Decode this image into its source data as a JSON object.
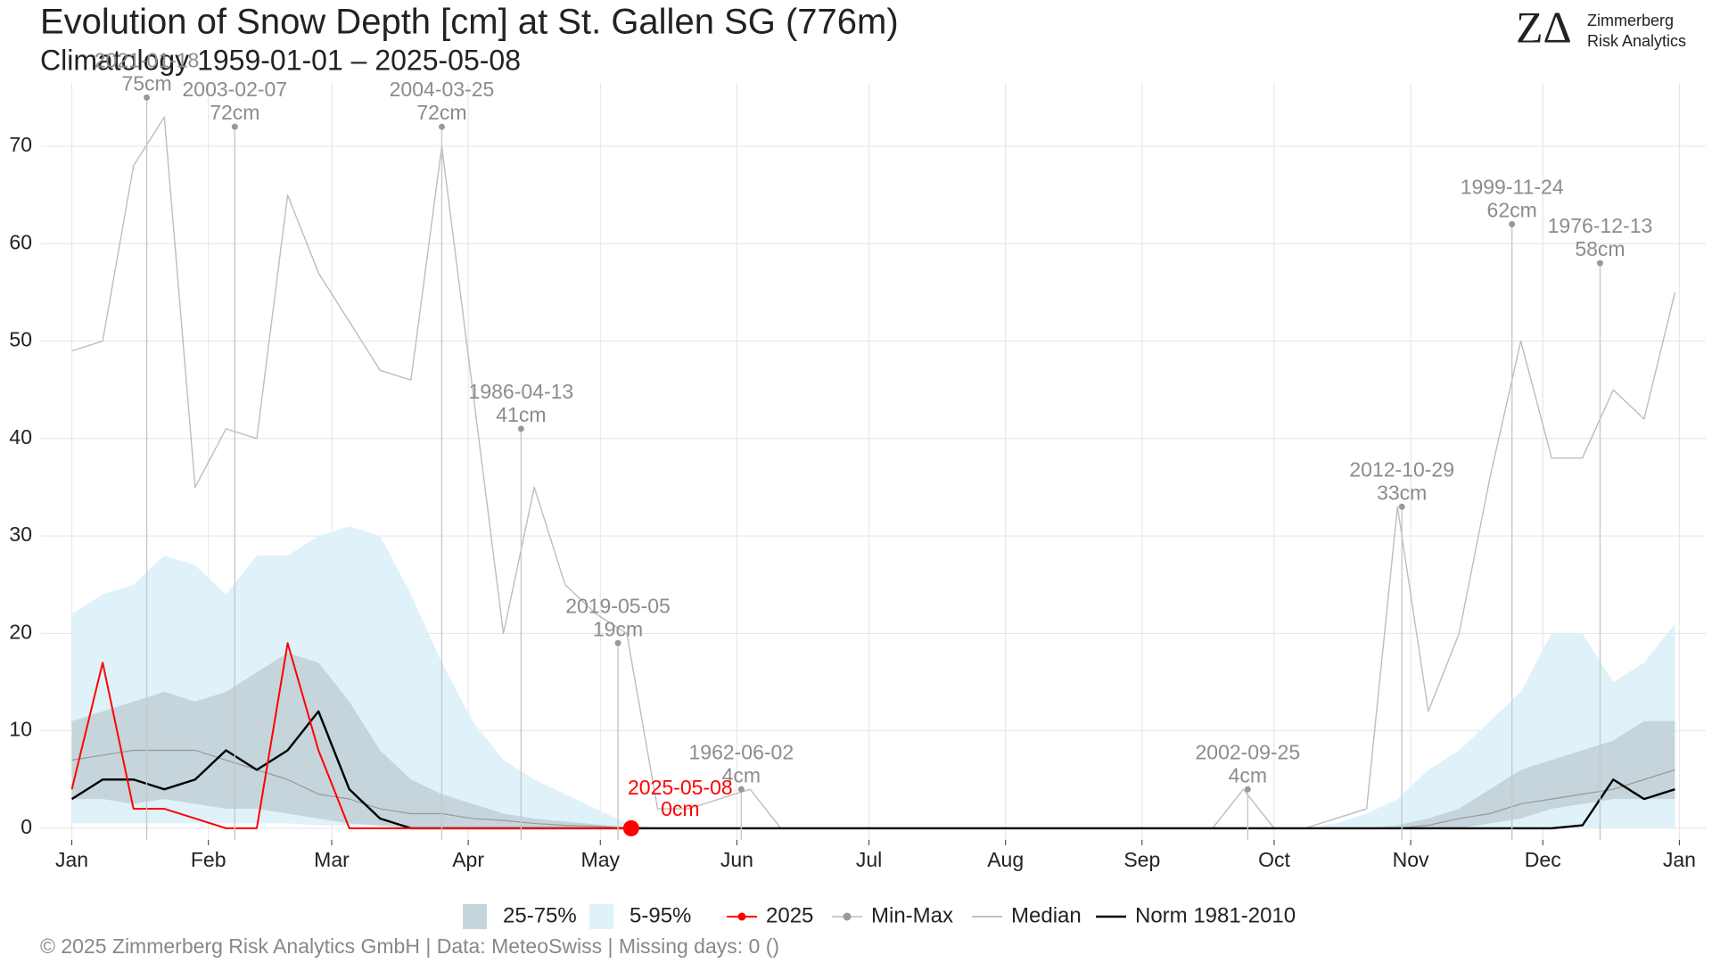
{
  "chart_data": {
    "type": "line",
    "title": "Evolution of Snow Depth [cm] at St. Gallen  SG (776m)",
    "subtitle": "Climatology 1959-01-01 – 2025-05-08",
    "logo": {
      "mark": "ZΔ",
      "line1": "Zimmerberg",
      "line2": "Risk Analytics"
    },
    "footer": "©  2025 Zimmerberg Risk Analytics GmbH | Data: MeteoSwiss | Missing days: 0 ()",
    "xlim": [
      -6,
      372
    ],
    "ylim": [
      -1.2,
      76.5
    ],
    "xticks": [
      {
        "value": 1,
        "label": "Jan"
      },
      {
        "value": 32,
        "label": "Feb"
      },
      {
        "value": 60,
        "label": "Mar"
      },
      {
        "value": 91,
        "label": "Apr"
      },
      {
        "value": 121,
        "label": "May"
      },
      {
        "value": 152,
        "label": "Jun"
      },
      {
        "value": 182,
        "label": "Jul"
      },
      {
        "value": 213,
        "label": "Aug"
      },
      {
        "value": 244,
        "label": "Sep"
      },
      {
        "value": 274,
        "label": "Oct"
      },
      {
        "value": 305,
        "label": "Nov"
      },
      {
        "value": 335,
        "label": "Dec"
      },
      {
        "value": 366,
        "label": "Jan"
      }
    ],
    "yticks": [
      0,
      10,
      20,
      30,
      40,
      50,
      60,
      70
    ],
    "grid": true,
    "x": [
      1,
      8,
      15,
      22,
      29,
      36,
      43,
      50,
      57,
      64,
      71,
      78,
      85,
      92,
      99,
      106,
      113,
      120,
      127,
      134,
      141,
      148,
      155,
      162,
      169,
      176,
      183,
      190,
      197,
      204,
      211,
      218,
      225,
      232,
      239,
      246,
      253,
      260,
      267,
      274,
      281,
      288,
      295,
      302,
      309,
      316,
      323,
      330,
      337,
      344,
      351,
      358,
      365
    ],
    "series": [
      {
        "name": "5-95%",
        "kind": "band",
        "color": "#dff2f9",
        "low": [
          0.5,
          0.5,
          0.5,
          0.5,
          0.5,
          0.5,
          0.5,
          0.5,
          0.3,
          0.3,
          0.2,
          0,
          0,
          0,
          0,
          0,
          0,
          0,
          0,
          0,
          0,
          0,
          0,
          0,
          0,
          0,
          0,
          0,
          0,
          0,
          0,
          0,
          0,
          0,
          0,
          0,
          0,
          0,
          0,
          0,
          0,
          0,
          0,
          0,
          0,
          0,
          0,
          0,
          0,
          0,
          0,
          0,
          0
        ],
        "high": [
          22,
          24,
          25,
          28,
          27,
          24,
          28,
          28,
          30,
          31,
          30,
          24,
          17,
          11,
          7,
          5,
          3.5,
          2,
          0.5,
          0,
          0,
          0,
          0,
          0,
          0,
          0,
          0,
          0,
          0,
          0,
          0,
          0,
          0,
          0,
          0,
          0,
          0,
          0,
          0,
          0,
          0,
          0.5,
          1.5,
          3,
          6,
          8,
          11,
          14,
          20,
          20,
          15,
          17,
          21
        ]
      },
      {
        "name": "25-75%",
        "kind": "band",
        "color": "#c5d5db",
        "low": [
          3,
          3,
          2.5,
          3,
          2.5,
          2,
          2,
          1.5,
          1,
          0.5,
          0.3,
          0,
          0,
          0,
          0,
          0,
          0,
          0,
          0,
          0,
          0,
          0,
          0,
          0,
          0,
          0,
          0,
          0,
          0,
          0,
          0,
          0,
          0,
          0,
          0,
          0,
          0,
          0,
          0,
          0,
          0,
          0,
          0,
          0,
          0,
          0,
          0.5,
          1,
          2,
          2.5,
          3,
          3,
          3
        ],
        "high": [
          11,
          12,
          13,
          14,
          13,
          14,
          16,
          18,
          17,
          13,
          8,
          5,
          3.5,
          2.5,
          1.5,
          1,
          0.7,
          0.4,
          0.1,
          0,
          0,
          0,
          0,
          0,
          0,
          0,
          0,
          0,
          0,
          0,
          0,
          0,
          0,
          0,
          0,
          0,
          0,
          0,
          0,
          0,
          0,
          0,
          0,
          0.3,
          1,
          2,
          4,
          6,
          7,
          8,
          9,
          11,
          11
        ]
      },
      {
        "name": "Min-Max",
        "kind": "line",
        "color": "#bdbdbd",
        "dot": "#999999",
        "values": [
          49,
          50,
          68,
          73,
          35,
          41,
          40,
          65,
          57,
          52,
          47,
          46,
          70,
          45,
          20,
          35,
          25,
          22,
          20,
          2,
          2,
          3,
          4,
          0,
          0,
          0,
          0,
          0,
          0,
          0,
          0,
          0,
          0,
          0,
          0,
          0,
          0,
          0,
          4,
          0,
          0,
          1,
          2,
          33,
          12,
          20,
          36,
          50,
          38,
          38,
          45,
          42,
          55
        ]
      },
      {
        "name": "Median",
        "kind": "line",
        "color": "#999999",
        "width": 1.2,
        "values": [
          7,
          7.5,
          8,
          8,
          8,
          7,
          6,
          5,
          3.5,
          3,
          2,
          1.5,
          1.5,
          1,
          0.8,
          0.5,
          0.3,
          0.2,
          0,
          0,
          0,
          0,
          0,
          0,
          0,
          0,
          0,
          0,
          0,
          0,
          0,
          0,
          0,
          0,
          0,
          0,
          0,
          0,
          0,
          0,
          0,
          0,
          0,
          0,
          0.3,
          1,
          1.5,
          2.5,
          3,
          3.5,
          4,
          5,
          6
        ]
      },
      {
        "name": "Norm 1981-2010",
        "kind": "line",
        "color": "#000000",
        "width": 2.4,
        "values": [
          3,
          5,
          5,
          4,
          5,
          8,
          6,
          8,
          12,
          4,
          1,
          0,
          0,
          0,
          0,
          0,
          0,
          0,
          0,
          0,
          0,
          0,
          0,
          0,
          0,
          0,
          0,
          0,
          0,
          0,
          0,
          0,
          0,
          0,
          0,
          0,
          0,
          0,
          0,
          0,
          0,
          0,
          0,
          0,
          0,
          0,
          0,
          0,
          0,
          0.3,
          5,
          3,
          4
        ]
      },
      {
        "name": "2025",
        "kind": "line",
        "color": "#ff0000",
        "width": 2,
        "dot": "#ff0000",
        "values": [
          4,
          17,
          2,
          2,
          1,
          0,
          0,
          19,
          8,
          0,
          0,
          0,
          0,
          0,
          0,
          0,
          0,
          0,
          0,
          null,
          null,
          null,
          null,
          null,
          null,
          null,
          null,
          null,
          null,
          null,
          null,
          null,
          null,
          null,
          null,
          null,
          null,
          null,
          null,
          null,
          null,
          null,
          null,
          null,
          null,
          null,
          null,
          null,
          null,
          null,
          null,
          null,
          null
        ]
      }
    ],
    "annotations": [
      {
        "date": "2021-01-18",
        "x": 18,
        "y": 75,
        "label": "75cm"
      },
      {
        "date": "2003-02-07",
        "x": 38,
        "y": 72,
        "label": "72cm"
      },
      {
        "date": "2004-03-25",
        "x": 85,
        "y": 72,
        "label": "72cm"
      },
      {
        "date": "1986-04-13",
        "x": 103,
        "y": 41,
        "label": "41cm"
      },
      {
        "date": "2019-05-05",
        "x": 125,
        "y": 19,
        "label": "19cm"
      },
      {
        "date": "1962-06-02",
        "x": 153,
        "y": 4,
        "label": "4cm"
      },
      {
        "date": "2002-09-25",
        "x": 268,
        "y": 4,
        "label": "4cm"
      },
      {
        "date": "2012-10-29",
        "x": 303,
        "y": 33,
        "label": "33cm"
      },
      {
        "date": "1999-11-24",
        "x": 328,
        "y": 62,
        "label": "62cm"
      },
      {
        "date": "1976-12-13",
        "x": 348,
        "y": 58,
        "label": "58cm"
      }
    ],
    "current": {
      "date": "2025-05-08",
      "x": 128,
      "y": 0,
      "label": "0cm",
      "color": "#ff0000"
    }
  }
}
